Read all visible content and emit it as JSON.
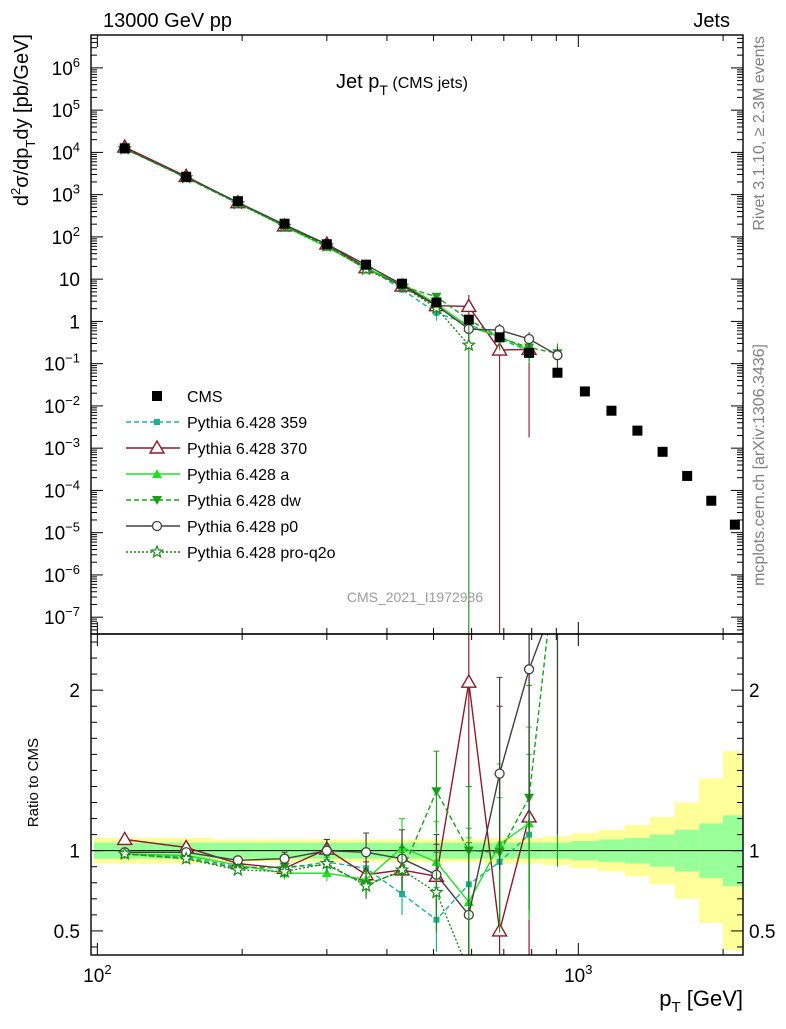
{
  "header": {
    "left": "13000 GeV pp",
    "right": "Jets"
  },
  "side_labels": {
    "top": "Rivet 3.1.10, ≥ 2.3M events",
    "bottom": "mcplots.cern.ch [arXiv:1306.3436]"
  },
  "watermark": "CMS_2021_I1972986",
  "title": {
    "main": "Jet p",
    "sub": "T",
    "suffix": " (CMS jets)"
  },
  "axes": {
    "ylabel_main": "d²σ/dp dy [pb/GeV]",
    "ylabel_parts": [
      "d",
      "2",
      "σ/dp",
      "T",
      "dy [pb/GeV]"
    ],
    "ylabel_ratio": "Ratio to CMS",
    "xlabel_main": "p",
    "xlabel_sub": "T",
    "xlabel_unit": " [GeV]"
  },
  "chart_data": {
    "type": "scatter",
    "x_scale": "log",
    "y_scale": "log",
    "xlim": [
      97,
      2200
    ],
    "ylim": [
      4e-08,
      6000000
    ],
    "ratio_ylim": [
      0.35,
      2.35
    ],
    "x_ticks_major": [
      {
        "v": 100,
        "base": "10",
        "exp": "2"
      },
      {
        "v": 1000,
        "base": "10",
        "exp": "3"
      }
    ],
    "y_ticks_major": [
      {
        "v": 1000000.0,
        "base": "10",
        "exp": "6"
      },
      {
        "v": 100000.0,
        "base": "10",
        "exp": "5"
      },
      {
        "v": 10000.0,
        "base": "10",
        "exp": "4"
      },
      {
        "v": 1000.0,
        "base": "10",
        "exp": "3"
      },
      {
        "v": 100,
        "base": "10",
        "exp": "2"
      },
      {
        "v": 10,
        "base": "10",
        "exp": ""
      },
      {
        "v": 1,
        "base": "1",
        "exp": ""
      },
      {
        "v": 0.1,
        "base": "10",
        "exp": "−1"
      },
      {
        "v": 0.01,
        "base": "10",
        "exp": "−2"
      },
      {
        "v": 0.001,
        "base": "10",
        "exp": "−3"
      },
      {
        "v": 0.0001,
        "base": "10",
        "exp": "−4"
      },
      {
        "v": 1e-05,
        "base": "10",
        "exp": "−5"
      },
      {
        "v": 1e-06,
        "base": "10",
        "exp": "−6"
      },
      {
        "v": 1e-07,
        "base": "10",
        "exp": "−7"
      }
    ],
    "ratio_ticks": [
      {
        "v": 0.5,
        "label": "0.5"
      },
      {
        "v": 1,
        "label": "1"
      },
      {
        "v": 2,
        "label": "2"
      }
    ],
    "legend_position": "lower-left",
    "data": {
      "name": "CMS",
      "color": "#000000",
      "x": [
        114,
        153,
        196,
        245,
        300,
        362,
        430,
        507,
        592,
        686,
        790,
        905,
        1032,
        1172,
        1327,
        1497,
        1684,
        1890,
        2116
      ],
      "y": [
        12500,
        2650,
        700,
        205,
        67,
        22,
        7.8,
        2.8,
        1.1,
        0.42,
        0.18,
        0.061,
        0.022,
        0.0077,
        0.0026,
        0.00082,
        0.00022,
        5.7e-05,
        1.55e-05
      ],
      "band_inner": [
        0.05,
        0.05,
        0.05,
        0.05,
        0.05,
        0.05,
        0.05,
        0.05,
        0.05,
        0.05,
        0.05,
        0.05,
        0.06,
        0.07,
        0.08,
        0.1,
        0.13,
        0.17,
        0.22
      ],
      "band_outer": [
        0.08,
        0.08,
        0.07,
        0.07,
        0.07,
        0.07,
        0.07,
        0.07,
        0.07,
        0.08,
        0.08,
        0.09,
        0.11,
        0.13,
        0.16,
        0.21,
        0.3,
        0.45,
        0.62
      ]
    },
    "series": [
      {
        "name": "Pythia 6.428 359",
        "color": "#19b394",
        "dash": "5,3",
        "marker": "square-small",
        "x": [
          114,
          153,
          196,
          245,
          300,
          362,
          430,
          507,
          592,
          686,
          790
        ],
        "ratio": [
          0.98,
          0.96,
          0.9,
          0.89,
          0.93,
          0.89,
          0.73,
          0.57,
          0.79,
          0.93,
          1.1
        ],
        "err": [
          0.02,
          0.02,
          0.02,
          0.04,
          0.05,
          0.08,
          0.13,
          0.2,
          0.35,
          0.4,
          0.5
        ]
      },
      {
        "name": "Pythia 6.428 370",
        "color": "#8b1a2e",
        "dash": "",
        "marker": "triangle-open",
        "x": [
          114,
          153,
          196,
          245,
          300,
          362,
          430,
          507,
          592,
          686,
          790
        ],
        "ratio": [
          1.07,
          1.02,
          0.92,
          0.89,
          1.01,
          0.85,
          0.88,
          0.84,
          2.05,
          0.5,
          1.21
        ],
        "err": [
          0.02,
          0.02,
          0.02,
          0.04,
          0.06,
          0.08,
          0.12,
          0.2,
          1.8,
          1.4,
          1.2
        ]
      },
      {
        "name": "Pythia 6.428 a",
        "color": "#22dd22",
        "dash": "",
        "marker": "triangle-up",
        "x": [
          114,
          153,
          196,
          245,
          300,
          362,
          430,
          507,
          592,
          686,
          790
        ],
        "ratio": [
          0.98,
          0.97,
          0.91,
          0.86,
          0.86,
          0.82,
          1.02,
          0.93,
          0.68,
          1.04,
          1.17
        ],
        "err": [
          0.02,
          0.02,
          0.02,
          0.04,
          0.05,
          0.08,
          0.18,
          0.25,
          0.4,
          0.5,
          0.6
        ]
      },
      {
        "name": "Pythia 6.428 dw",
        "color": "#17a217",
        "dash": "5,3",
        "marker": "triangle-down",
        "x": [
          114,
          153,
          196,
          245,
          300,
          362,
          430,
          507,
          592,
          686,
          790,
          905
        ],
        "ratio": [
          0.98,
          0.95,
          0.89,
          0.9,
          0.91,
          0.79,
          0.87,
          1.37,
          1.0,
          0.99,
          1.33,
          2.9
        ],
        "err": [
          0.02,
          0.02,
          0.02,
          0.04,
          0.05,
          0.08,
          0.12,
          0.25,
          0.4,
          0.5,
          0.7,
          2.0
        ]
      },
      {
        "name": "Pythia 6.428 p0",
        "color": "#404040",
        "dash": "",
        "marker": "circle-open",
        "x": [
          114,
          153,
          196,
          245,
          300,
          362,
          430,
          507,
          592,
          686,
          790,
          905
        ],
        "ratio": [
          0.99,
          0.99,
          0.94,
          0.95,
          1.0,
          0.99,
          0.95,
          0.85,
          0.6,
          1.48,
          2.13,
          2.6
        ],
        "err": [
          0.02,
          0.02,
          0.02,
          0.04,
          0.07,
          0.12,
          0.18,
          0.25,
          0.4,
          0.6,
          1.0,
          1.5
        ]
      },
      {
        "name": "Pythia 6.428 pro-q2o",
        "color": "#1a8a1a",
        "dash": "2,2",
        "marker": "star-open",
        "x": [
          114,
          153,
          196,
          245,
          300,
          362,
          430,
          507,
          592
        ],
        "ratio": [
          0.98,
          0.95,
          0.88,
          0.87,
          0.92,
          0.78,
          0.88,
          0.74,
          0.25
        ],
        "err": [
          0.02,
          0.02,
          0.02,
          0.04,
          0.05,
          0.08,
          0.14,
          0.25,
          0.8
        ]
      }
    ]
  }
}
